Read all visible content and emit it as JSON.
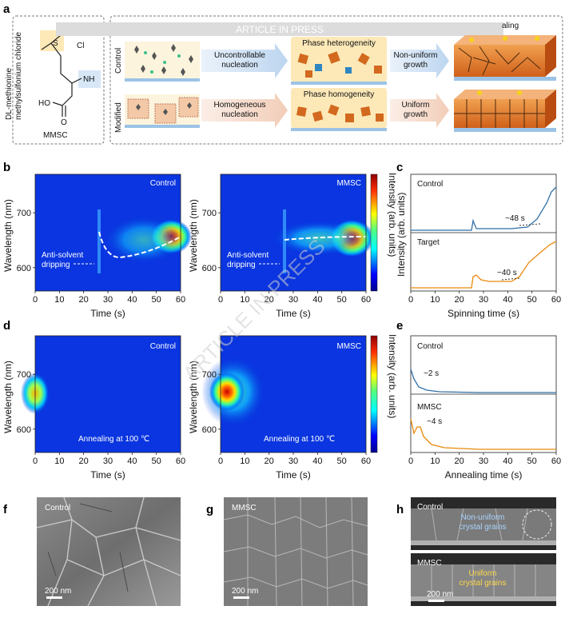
{
  "watermark": {
    "banner": "ARTICLE IN PRESS",
    "diagonal": "ARTICLE IN PRESS"
  },
  "panel_labels": {
    "a": "a",
    "b": "b",
    "c": "c",
    "d": "d",
    "e": "e",
    "f": "f",
    "g": "g",
    "h": "h"
  },
  "panel_a": {
    "molecule_name_line1": "DL-methionine",
    "molecule_name_line2": "methylsulfonium chloride",
    "abbrev": "MMSC",
    "atom_s": "S",
    "atom_cl": "Cl",
    "group_nh2": "NH",
    "group_ho": "HO",
    "group_o": "O",
    "rows": [
      {
        "label": "Control",
        "step1": "Uncontrollable",
        "step1b": "nucleation",
        "step2": "Phase heterogeneity",
        "step3": "Non-uniform",
        "step3b": "growth"
      },
      {
        "label": "Modified",
        "step1": "Homogeneous",
        "step1b": "nucleation",
        "step2": "Phase homogeneity",
        "step3": "Uniform",
        "step3b": "growth"
      }
    ],
    "header_fragment": "aling"
  },
  "panel_b": {
    "maps": [
      {
        "tag": "Control",
        "annotation": "Anti-solvent",
        "annotation2": "dripping"
      },
      {
        "tag": "MMSC",
        "annotation": "Anti-solvent",
        "annotation2": "dripping"
      }
    ],
    "ylabel": "Wavelength (nm)",
    "xlabel": "Time (s)",
    "yticks": [
      "700",
      "600"
    ],
    "xticks": [
      "0",
      "10",
      "20",
      "30",
      "40",
      "50",
      "60"
    ],
    "colorbar_label": "Intensity (arb. units)"
  },
  "panel_c": {
    "ylabel": "Intensity (arb. units)",
    "xlabel": "Spinning time (s)",
    "xticks": [
      "0",
      "10",
      "20",
      "30",
      "40",
      "50",
      "60"
    ],
    "traces": [
      {
        "name": "Control",
        "annotation": "~48 s",
        "color": "#2f6fa6"
      },
      {
        "name": "Target",
        "annotation": "~40 s",
        "color": "#e8890c"
      }
    ]
  },
  "panel_d": {
    "maps": [
      {
        "tag": "Control",
        "annotation": "Annealing at 100 ℃"
      },
      {
        "tag": "MMSC",
        "annotation": "Annealing at 100 ℃"
      }
    ],
    "ylabel": "Wavelength (nm)",
    "xlabel": "Time (s)",
    "yticks": [
      "700",
      "600"
    ],
    "xticks": [
      "0",
      "10",
      "20",
      "30",
      "40",
      "50",
      "60"
    ],
    "colorbar_label": "Intensity (arb. units)"
  },
  "panel_e": {
    "xlabel": "Annealing time (s)",
    "xticks": [
      "0",
      "10",
      "20",
      "30",
      "40",
      "50",
      "60"
    ],
    "traces": [
      {
        "name": "Control",
        "annotation": "~2 s",
        "color": "#2f6fa6"
      },
      {
        "name": "MMSC",
        "annotation": "~4 s",
        "color": "#e8890c"
      }
    ]
  },
  "sem": [
    {
      "panel": "f",
      "tag": "Control",
      "scale": "200 nm"
    },
    {
      "panel": "g",
      "tag": "MMSC",
      "scale": "200 nm"
    }
  ],
  "panel_h": {
    "top": {
      "tag": "Control",
      "text1": "Non-uniform",
      "text2": "crystal grains"
    },
    "bottom": {
      "tag": "MMSC",
      "text1": "Uniform",
      "text2": "crystal grains"
    },
    "scale": "200 nm"
  }
}
